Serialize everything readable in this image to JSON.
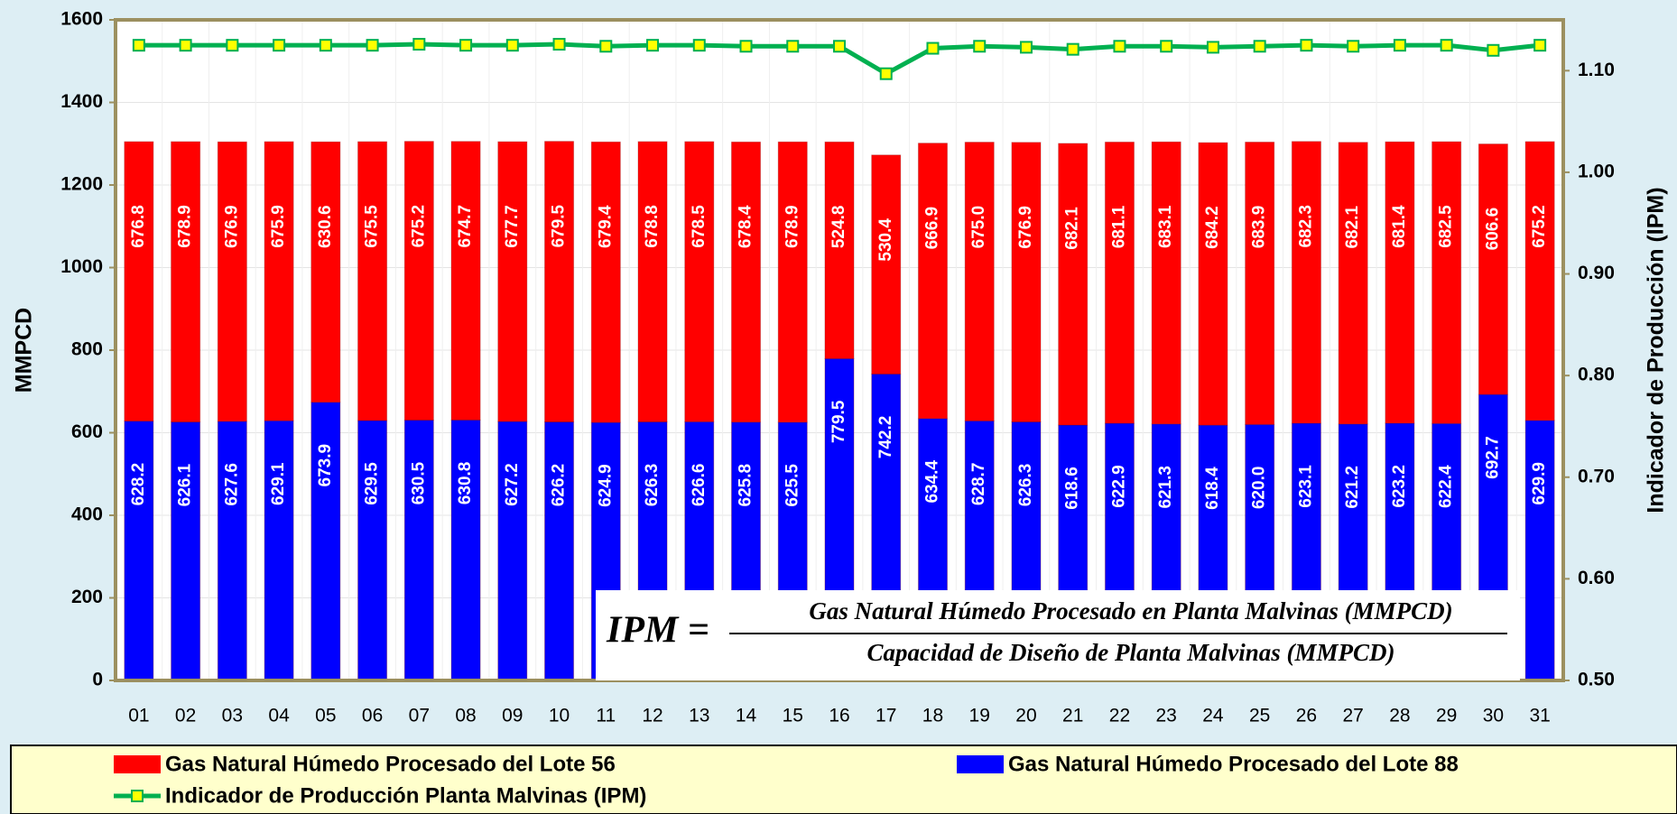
{
  "chart_data": {
    "type": "bar",
    "stacked": true,
    "categories": [
      "01",
      "02",
      "03",
      "04",
      "05",
      "06",
      "07",
      "08",
      "09",
      "10",
      "11",
      "12",
      "13",
      "14",
      "15",
      "16",
      "17",
      "18",
      "19",
      "20",
      "21",
      "22",
      "23",
      "24",
      "25",
      "26",
      "27",
      "28",
      "29",
      "30",
      "31"
    ],
    "series": [
      {
        "name": "Gas Natural Húmedo Procesado del Lote 56",
        "type": "bar",
        "color": "#ff0000",
        "values": [
          676.8,
          678.9,
          676.9,
          675.9,
          630.6,
          675.5,
          675.2,
          674.7,
          677.7,
          679.5,
          679.4,
          678.8,
          678.5,
          678.4,
          678.9,
          524.8,
          530.4,
          666.9,
          675.0,
          676.9,
          682.1,
          681.1,
          683.1,
          684.2,
          683.9,
          682.3,
          682.1,
          681.4,
          682.5,
          606.6,
          675.2
        ],
        "value_labels": [
          "676.8",
          "678.9",
          "676.9",
          "675.9",
          "630.6",
          "675.5",
          "675.2",
          "674.7",
          "677.7",
          "679.5",
          "679.4",
          "678.8",
          "678.5",
          "678.4",
          "678.9",
          "524.8",
          "530.4",
          "666.9",
          "675.0",
          "676.9",
          "682.1",
          "681.1",
          "683.1",
          "684.2",
          "683.9",
          "682.3",
          "682.1",
          "681.4",
          "682.5",
          "606.6",
          "675.2"
        ]
      },
      {
        "name": "Gas Natural Húmedo Procesado del Lote 88",
        "type": "bar",
        "color": "#0000ff",
        "values": [
          628.2,
          626.1,
          627.6,
          629.1,
          673.9,
          629.5,
          630.5,
          630.8,
          627.2,
          626.2,
          624.9,
          626.3,
          626.6,
          625.8,
          625.5,
          779.5,
          742.2,
          634.4,
          628.7,
          626.3,
          618.6,
          622.9,
          621.3,
          618.4,
          620.0,
          623.1,
          621.2,
          623.2,
          622.4,
          692.7,
          629.9
        ],
        "value_labels": [
          "628.2",
          "626.1",
          "627.6",
          "629.1",
          "673.9",
          "629.5",
          "630.5",
          "630.8",
          "627.2",
          "626.2",
          "624.9",
          "626.3",
          "626.6",
          "625.8",
          "625.5",
          "779.5",
          "742.2",
          "634.4",
          "628.7",
          "626.3",
          "618.6",
          "622.9",
          "621.3",
          "618.4",
          "620.0",
          "623.1",
          "621.2",
          "623.2",
          "622.4",
          "692.7",
          "629.9"
        ]
      },
      {
        "name": "Indicador de Producción Planta Malvinas (IPM)",
        "type": "line",
        "axis": "y2",
        "color": "#00b050",
        "marker_color": "#ffff00",
        "values": [
          1.125,
          1.125,
          1.125,
          1.125,
          1.125,
          1.125,
          1.126,
          1.125,
          1.125,
          1.126,
          1.124,
          1.125,
          1.125,
          1.124,
          1.124,
          1.124,
          1.097,
          1.122,
          1.124,
          1.123,
          1.121,
          1.124,
          1.124,
          1.123,
          1.124,
          1.125,
          1.124,
          1.125,
          1.125,
          1.12,
          1.125
        ]
      }
    ],
    "y_label": "MMPCD",
    "y2_label": "Indicador de Producción (IPM)",
    "ylim": [
      0,
      1600
    ],
    "yticks": [
      0,
      200,
      400,
      600,
      800,
      1000,
      1200,
      1400,
      1600
    ],
    "y2lim": [
      0.5,
      1.15
    ],
    "y2ticks": [
      {
        "value": 0.5,
        "label": "0.50"
      },
      {
        "value": 0.6,
        "label": "0.60"
      },
      {
        "value": 0.7,
        "label": "0.70"
      },
      {
        "value": 0.8,
        "label": "0.80"
      },
      {
        "value": 0.9,
        "label": "0.90"
      },
      {
        "value": 1.0,
        "label": "1.00"
      },
      {
        "value": 1.1,
        "label": "1.10"
      }
    ],
    "grid": true,
    "formula": {
      "lhs": "IPM =",
      "numerator": "Gas Natural Húmedo Procesado en Planta Malvinas (MMPCD)",
      "denominator": "Capacidad de Diseño de Planta Malvinas (MMPCD)"
    }
  }
}
